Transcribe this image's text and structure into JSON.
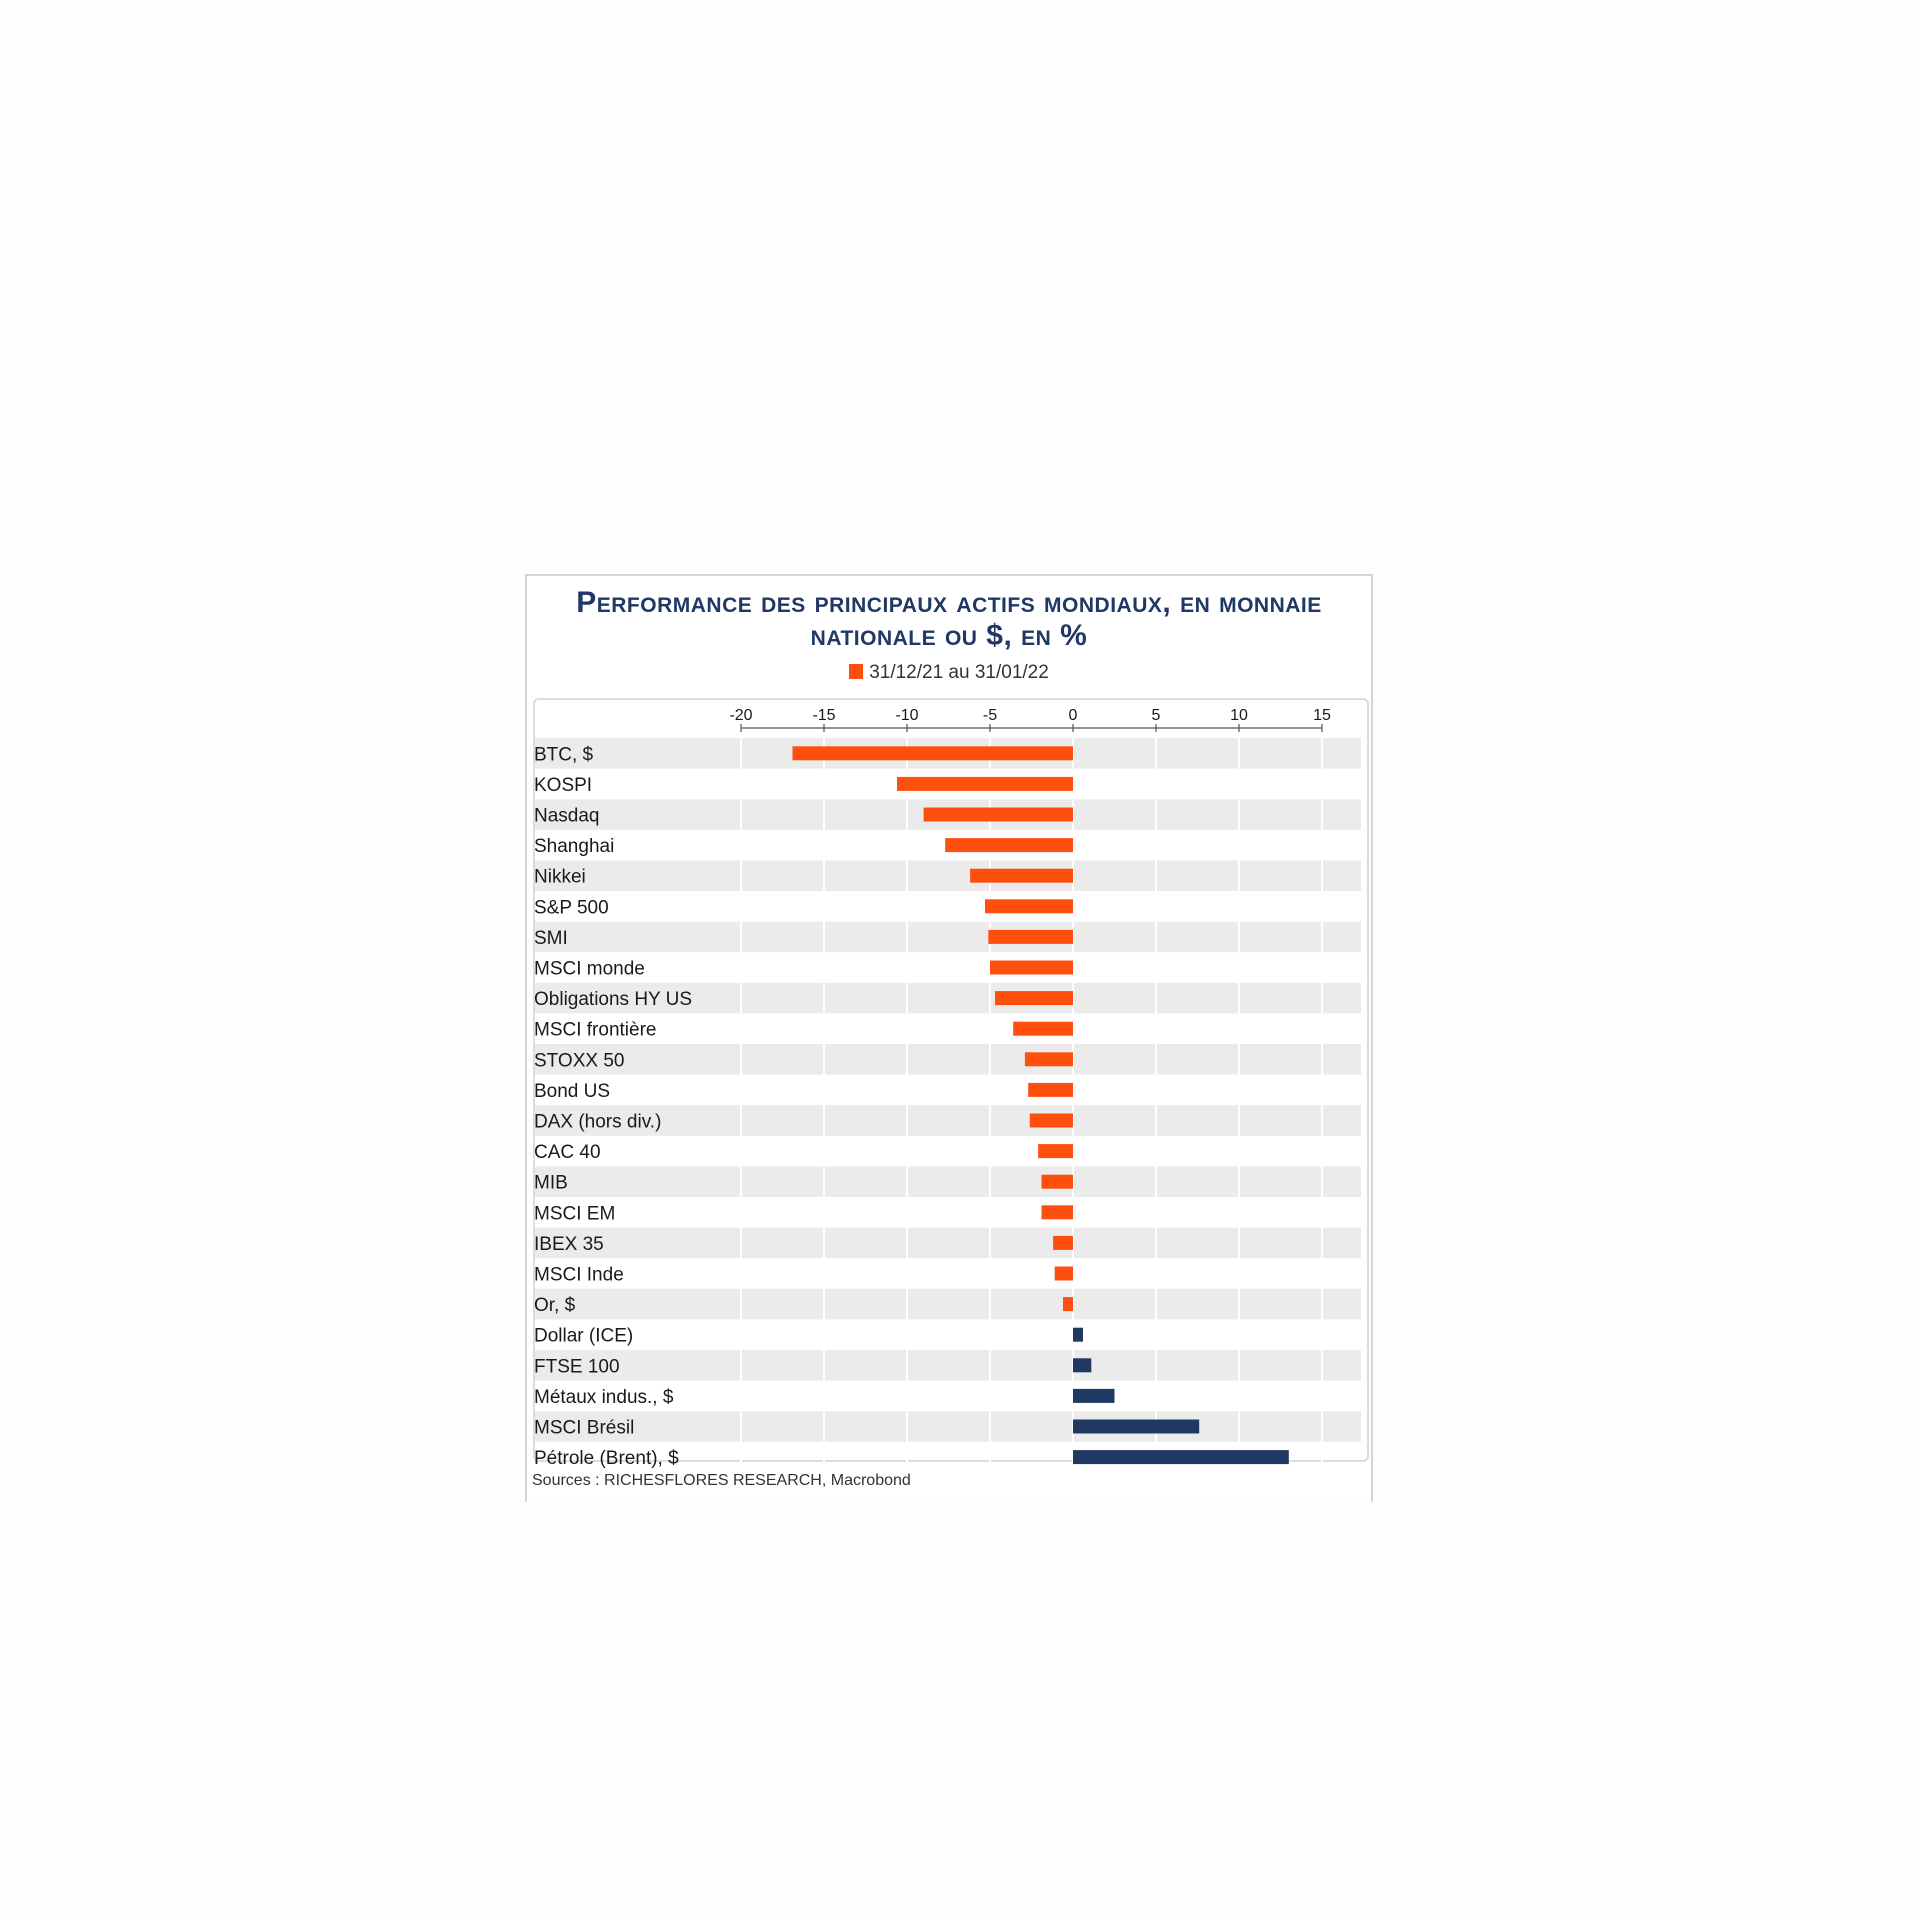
{
  "chart_data": {
    "type": "bar",
    "orientation": "horizontal",
    "title": "Performance des principaux actifs mondiaux, en monnaie nationale ou $, en %",
    "legend": [
      "31/12/21 au 31/01/22"
    ],
    "legend_placement": "top-center",
    "categories": [
      "BTC, $",
      "KOSPI",
      "Nasdaq",
      "Shanghai",
      "Nikkei",
      "S&P 500",
      "SMI",
      "MSCI monde",
      "Obligations HY US",
      "MSCI frontière",
      "STOXX 50",
      "Bond US",
      "DAX (hors div.)",
      "CAC 40",
      "MIB",
      "MSCI EM",
      "IBEX 35",
      "MSCI Inde",
      "Or, $",
      "Dollar (ICE)",
      "FTSE 100",
      "Métaux indus., $",
      "MSCI Brésil",
      "Pétrole (Brent), $"
    ],
    "series": [
      {
        "name": "31/12/21 au 31/01/22",
        "values": [
          -16.9,
          -10.6,
          -9.0,
          -7.7,
          -6.2,
          -5.3,
          -5.1,
          -5.0,
          -4.7,
          -3.6,
          -2.9,
          -2.7,
          -2.6,
          -2.1,
          -1.9,
          -1.9,
          -1.2,
          -1.1,
          -0.6,
          0.6,
          1.1,
          2.5,
          7.6,
          13.0
        ]
      }
    ],
    "x_ticks": [
      -20,
      -15,
      -10,
      -5,
      0,
      5,
      10,
      15
    ],
    "xlim": [
      -20,
      15
    ],
    "xlabel": "",
    "ylabel": "",
    "grid": true,
    "colors": {
      "negative": "#ff4f0f",
      "positive": "#1f3864",
      "title": "#1f3864",
      "row_band": "#ebebeb",
      "gridline": "#ffffff"
    }
  },
  "source": "Sources : RICHESFLORES RESEARCH, Macrobond"
}
